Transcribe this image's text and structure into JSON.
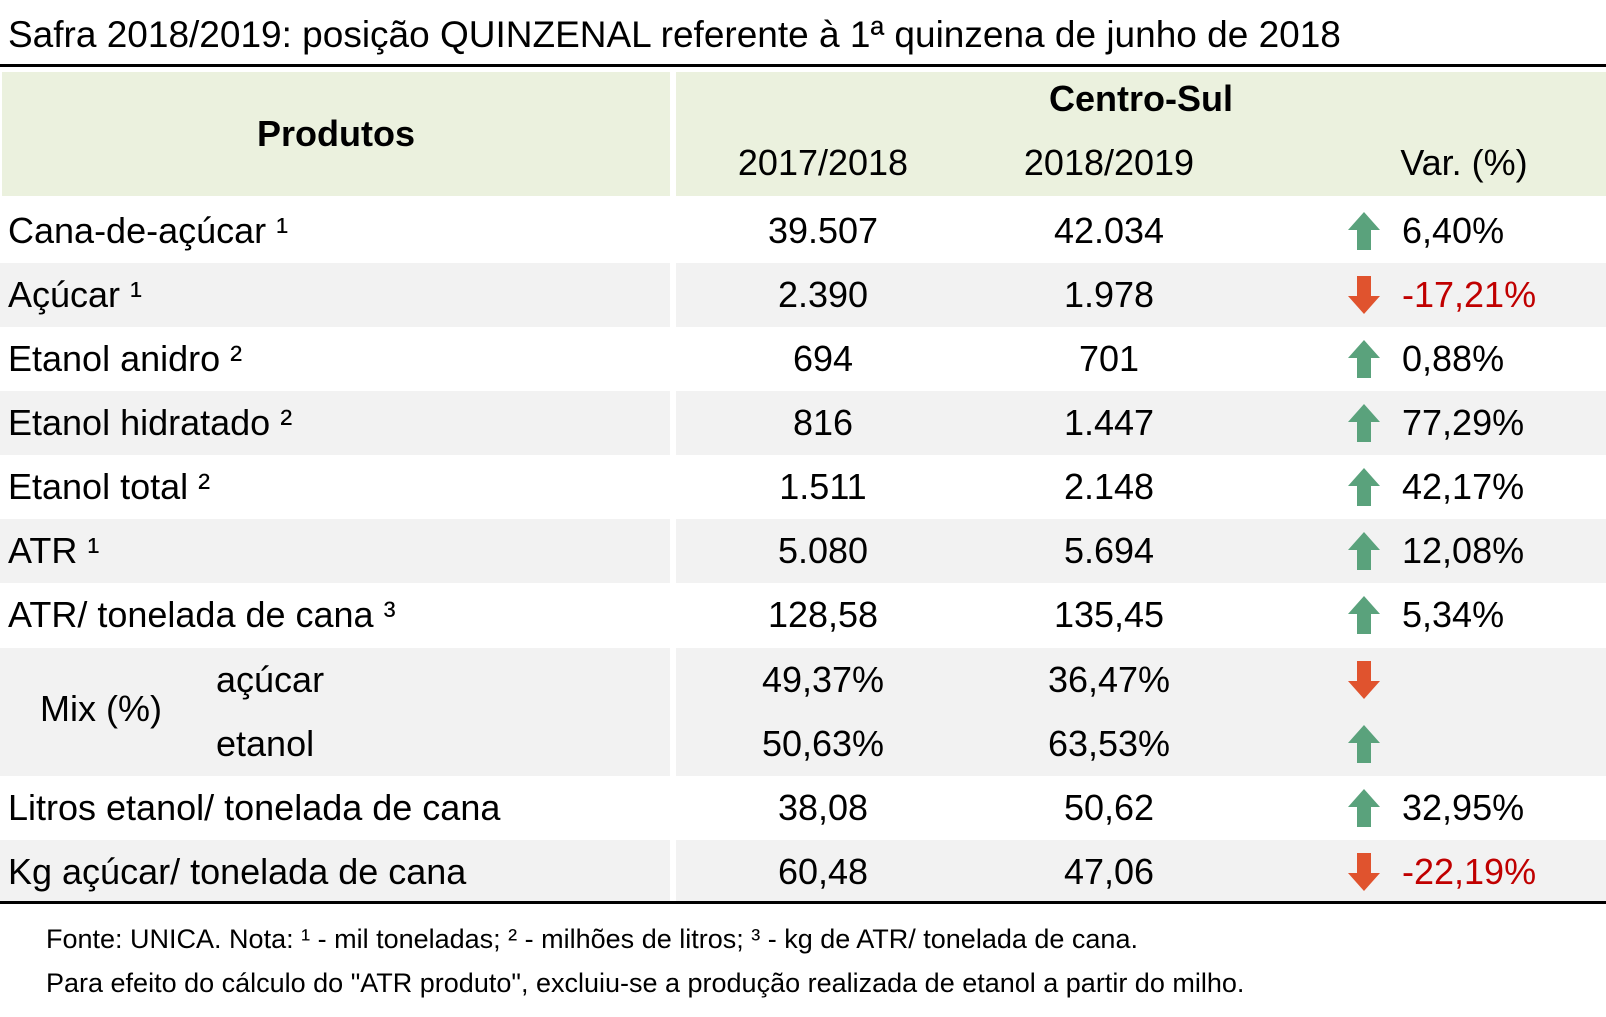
{
  "title": "Safra 2018/2019: posição QUINZENAL referente à 1ª quinzena de junho de 2018",
  "header": {
    "produtos": "Produtos",
    "region": "Centro-Sul",
    "col1": "2017/2018",
    "col2": "2018/2019",
    "col3": "Var. (%)"
  },
  "rows": [
    {
      "label": "Cana-de-açúcar ¹",
      "v1": "39.507",
      "v2": "42.034",
      "var": "6,40%",
      "dir": "up"
    },
    {
      "label": "Açúcar ¹",
      "v1": "2.390",
      "v2": "1.978",
      "var": "-17,21%",
      "dir": "down"
    },
    {
      "label": "Etanol anidro ²",
      "v1": "694",
      "v2": "701",
      "var": "0,88%",
      "dir": "up"
    },
    {
      "label": "Etanol hidratado ²",
      "v1": "816",
      "v2": "1.447",
      "var": "77,29%",
      "dir": "up"
    },
    {
      "label": "Etanol total ²",
      "v1": "1.511",
      "v2": "2.148",
      "var": "42,17%",
      "dir": "up"
    },
    {
      "label": "ATR ¹",
      "v1": "5.080",
      "v2": "5.694",
      "var": "12,08%",
      "dir": "up"
    },
    {
      "label": "ATR/ tonelada de cana ³",
      "v1": "128,58",
      "v2": "135,45",
      "var": "5,34%",
      "dir": "up"
    }
  ],
  "mix": {
    "label": "Mix (%)",
    "acucar": {
      "label": "açúcar",
      "v1": "49,37%",
      "v2": "36,47%",
      "dir": "down"
    },
    "etanol": {
      "label": "etanol",
      "v1": "50,63%",
      "v2": "63,53%",
      "dir": "up"
    }
  },
  "rows2": [
    {
      "label": "Litros etanol/ tonelada de cana",
      "v1": "38,08",
      "v2": "50,62",
      "var": "32,95%",
      "dir": "up"
    },
    {
      "label": "Kg açúcar/ tonelada de cana",
      "v1": "60,48",
      "v2": "47,06",
      "var": "-22,19%",
      "dir": "down"
    }
  ],
  "footnotes": [
    "Fonte: UNICA. Nota: ¹ - mil toneladas; ² - milhões de litros; ³ - kg de ATR/ tonelada de cana.",
    "Para efeito do cálculo do \"ATR produto\", excluiu-se a produção realizada de etanol a partir do milho."
  ],
  "colors": {
    "up": "#5aa27c",
    "down": "#e0532e",
    "negative_text": "#c00000",
    "header_bg": "#ebf1de",
    "stripe_bg": "#f2f2f2"
  }
}
